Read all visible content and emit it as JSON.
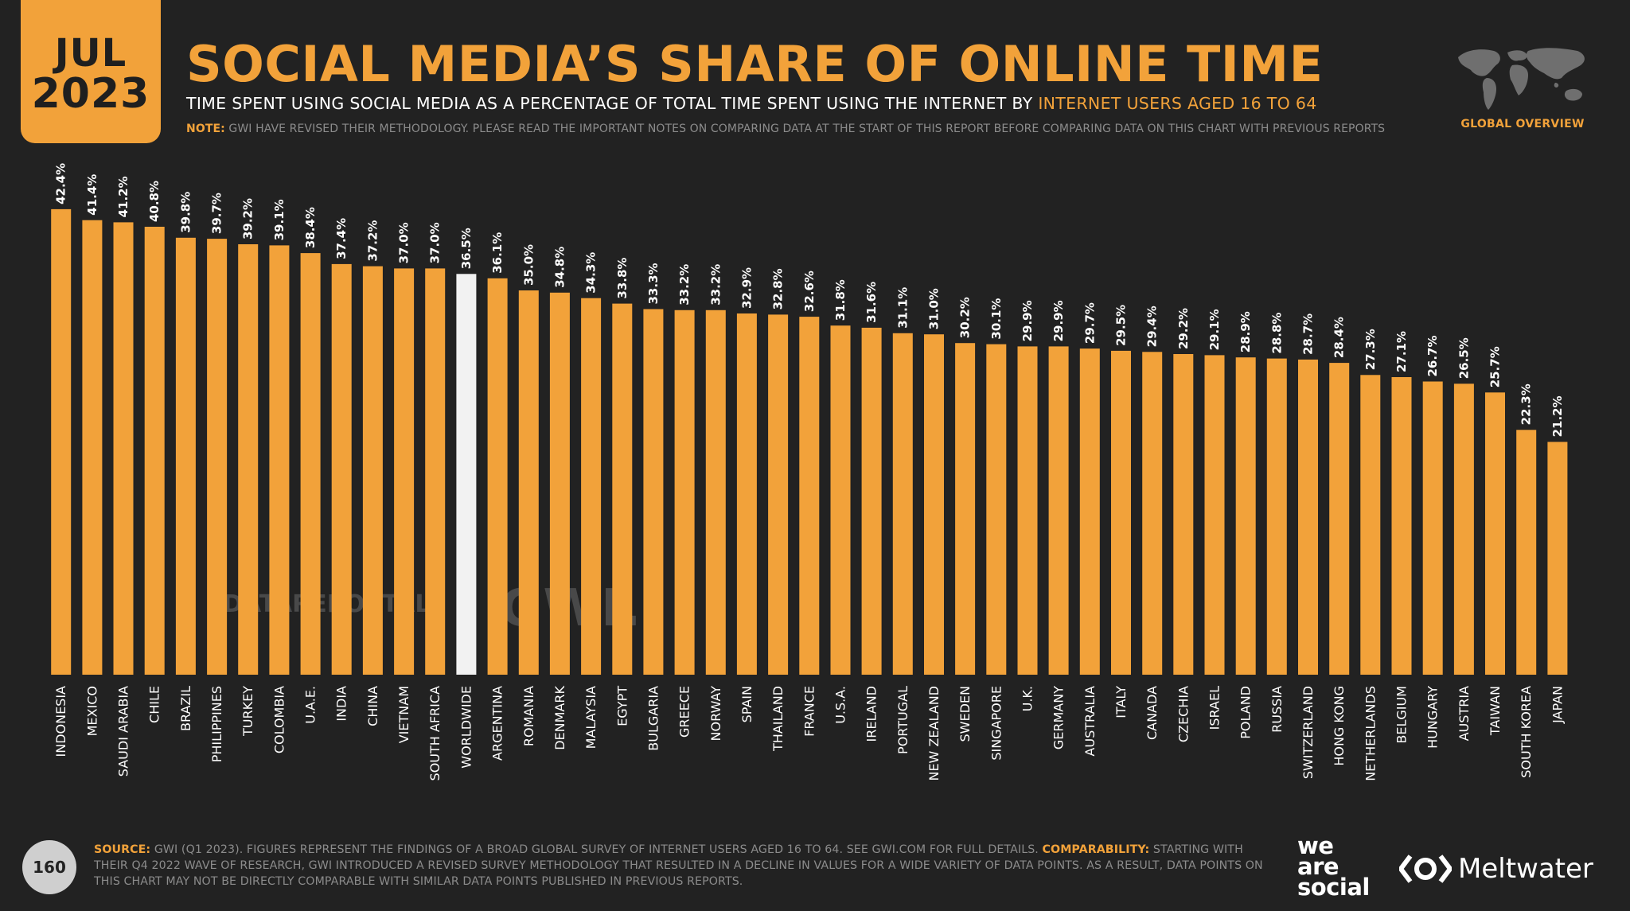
{
  "header": {
    "month": "JUL",
    "year": "2023",
    "title": "SOCIAL MEDIA’S SHARE OF ONLINE TIME",
    "subtitle_main": "TIME SPENT USING SOCIAL MEDIA AS A PERCENTAGE OF TOTAL TIME SPENT USING THE INTERNET BY ",
    "subtitle_highlight": "INTERNET USERS AGED 16 TO 64",
    "note_label": "NOTE:",
    "note_text": " GWI HAVE REVISED THEIR METHODOLOGY. PLEASE READ THE IMPORTANT NOTES ON COMPARING DATA AT THE START OF THIS REPORT BEFORE COMPARING DATA ON THIS CHART WITH PREVIOUS REPORTS",
    "section_label": "GLOBAL OVERVIEW"
  },
  "watermarks": {
    "datareportal": "DATAREPORTAL",
    "gwi": "GWI."
  },
  "footer": {
    "page_number": "160",
    "source_label": "SOURCE:",
    "source_text": " GWI (Q1 2023). FIGURES REPRESENT THE FINDINGS OF A BROAD GLOBAL SURVEY OF INTERNET USERS AGED 16 TO 64. SEE GWI.COM FOR FULL DETAILS. ",
    "comparability_label": "COMPARABILITY:",
    "comparability_text": " STARTING WITH THEIR Q4 2022 WAVE OF RESEARCH, GWI INTRODUCED A REVISED SURVEY METHODOLOGY THAT RESULTED IN A DECLINE IN VALUES FOR A WIDE VARIETY OF DATA POINTS. AS A RESULT, DATA POINTS ON THIS CHART MAY NOT BE DIRECTLY COMPARABLE WITH SIMILAR DATA POINTS PUBLISHED IN PREVIOUS REPORTS.",
    "brand_we": "we",
    "brand_are": "are",
    "brand_social": "social",
    "brand_meltwater": "Meltwater"
  },
  "colors": {
    "bar": "#f2a23a",
    "highlight_bar": "#f2f2f2",
    "background": "#222222"
  },
  "chart_data": {
    "type": "bar",
    "title": "SOCIAL MEDIA’S SHARE OF ONLINE TIME",
    "xlabel": "",
    "ylabel": "",
    "ylim": [
      0,
      45
    ],
    "grid": false,
    "legend": "none",
    "highlight_category": "WORLDWIDE",
    "categories": [
      "INDONESIA",
      "MEXICO",
      "SAUDI ARABIA",
      "CHILE",
      "BRAZIL",
      "PHILIPPINES",
      "TURKEY",
      "COLOMBIA",
      "U.A.E.",
      "INDIA",
      "CHINA",
      "VIETNAM",
      "SOUTH AFRICA",
      "WORLDWIDE",
      "ARGENTINA",
      "ROMANIA",
      "DENMARK",
      "MALAYSIA",
      "EGYPT",
      "BULGARIA",
      "GREECE",
      "NORWAY",
      "SPAIN",
      "THAILAND",
      "FRANCE",
      "U.S.A.",
      "IRELAND",
      "PORTUGAL",
      "NEW ZEALAND",
      "SWEDEN",
      "SINGAPORE",
      "U.K.",
      "GERMANY",
      "AUSTRALIA",
      "ITALY",
      "CANADA",
      "CZECHIA",
      "ISRAEL",
      "POLAND",
      "RUSSIA",
      "SWITZERLAND",
      "HONG KONG",
      "NETHERLANDS",
      "BELGIUM",
      "HUNGARY",
      "AUSTRIA",
      "TAIWAN",
      "SOUTH KOREA",
      "JAPAN"
    ],
    "values": [
      42.4,
      41.4,
      41.2,
      40.8,
      39.8,
      39.7,
      39.2,
      39.1,
      38.4,
      37.4,
      37.2,
      37.0,
      37.0,
      36.5,
      36.1,
      35.0,
      34.8,
      34.3,
      33.8,
      33.3,
      33.2,
      33.2,
      32.9,
      32.8,
      32.6,
      31.8,
      31.6,
      31.1,
      31.0,
      30.2,
      30.1,
      29.9,
      29.9,
      29.7,
      29.5,
      29.4,
      29.2,
      29.1,
      28.9,
      28.8,
      28.7,
      28.4,
      27.3,
      27.1,
      26.7,
      26.5,
      25.7,
      22.3,
      21.2
    ],
    "labels": [
      "42.4%",
      "41.4%",
      "41.2%",
      "40.8%",
      "39.8%",
      "39.7%",
      "39.2%",
      "39.1%",
      "38.4%",
      "37.4%",
      "37.2%",
      "37.0%",
      "37.0%",
      "36.5%",
      "36.1%",
      "35.0%",
      "34.8%",
      "34.3%",
      "33.8%",
      "33.3%",
      "33.2%",
      "33.2%",
      "32.9%",
      "32.8%",
      "32.6%",
      "31.8%",
      "31.6%",
      "31.1%",
      "31.0%",
      "30.2%",
      "30.1%",
      "29.9%",
      "29.9%",
      "29.7%",
      "29.5%",
      "29.4%",
      "29.2%",
      "29.1%",
      "28.9%",
      "28.8%",
      "28.7%",
      "28.4%",
      "27.3%",
      "27.1%",
      "26.7%",
      "26.5%",
      "25.7%",
      "22.3%",
      "21.2%"
    ]
  }
}
